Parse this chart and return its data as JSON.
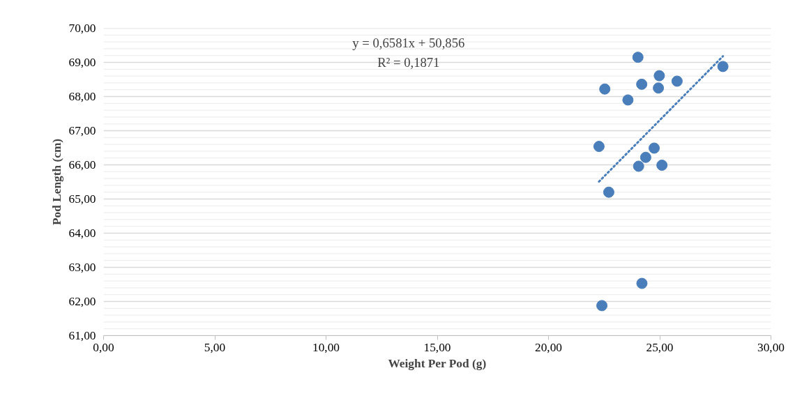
{
  "chart_data": {
    "type": "scatter",
    "xlabel": "Weight Per Pod (g)",
    "ylabel": "Pod Length (cm)",
    "xlim": [
      0,
      30
    ],
    "ylim": [
      61,
      70
    ],
    "xticks": [
      {
        "value": 0,
        "label": "0,00"
      },
      {
        "value": 5,
        "label": "5,00"
      },
      {
        "value": 10,
        "label": "10,00"
      },
      {
        "value": 15,
        "label": "15,00"
      },
      {
        "value": 20,
        "label": "20,00"
      },
      {
        "value": 25,
        "label": "25,00"
      },
      {
        "value": 30,
        "label": "30,00"
      }
    ],
    "yticks": [
      {
        "value": 61,
        "label": "61,00"
      },
      {
        "value": 61.2,
        "label": null
      },
      {
        "value": 61.4,
        "label": null
      },
      {
        "value": 61.6,
        "label": null
      },
      {
        "value": 61.8,
        "label": null
      },
      {
        "value": 62,
        "label": "62,00"
      },
      {
        "value": 62.2,
        "label": null
      },
      {
        "value": 62.4,
        "label": null
      },
      {
        "value": 62.6,
        "label": null
      },
      {
        "value": 62.8,
        "label": null
      },
      {
        "value": 63,
        "label": "63,00"
      },
      {
        "value": 63.2,
        "label": null
      },
      {
        "value": 63.4,
        "label": null
      },
      {
        "value": 63.6,
        "label": null
      },
      {
        "value": 63.8,
        "label": null
      },
      {
        "value": 64,
        "label": "64,00"
      },
      {
        "value": 64.2,
        "label": null
      },
      {
        "value": 64.4,
        "label": null
      },
      {
        "value": 64.6,
        "label": null
      },
      {
        "value": 64.8,
        "label": null
      },
      {
        "value": 65,
        "label": "65,00"
      },
      {
        "value": 65.2,
        "label": null
      },
      {
        "value": 65.4,
        "label": null
      },
      {
        "value": 65.6,
        "label": null
      },
      {
        "value": 65.8,
        "label": null
      },
      {
        "value": 66,
        "label": "66,00"
      },
      {
        "value": 66.2,
        "label": null
      },
      {
        "value": 66.4,
        "label": null
      },
      {
        "value": 66.6,
        "label": null
      },
      {
        "value": 66.8,
        "label": null
      },
      {
        "value": 67,
        "label": "67,00"
      },
      {
        "value": 67.2,
        "label": null
      },
      {
        "value": 67.4,
        "label": null
      },
      {
        "value": 67.6,
        "label": null
      },
      {
        "value": 67.8,
        "label": null
      },
      {
        "value": 68,
        "label": "68,00"
      },
      {
        "value": 68.2,
        "label": null
      },
      {
        "value": 68.4,
        "label": null
      },
      {
        "value": 68.6,
        "label": null
      },
      {
        "value": 68.8,
        "label": null
      },
      {
        "value": 69,
        "label": "69,00"
      },
      {
        "value": 69.2,
        "label": null
      },
      {
        "value": 69.4,
        "label": null
      },
      {
        "value": 69.6,
        "label": null
      },
      {
        "value": 69.8,
        "label": null
      },
      {
        "value": 70,
        "label": "70,00"
      }
    ],
    "grid": "y",
    "marker": "circle",
    "series": [
      {
        "color": "#4a7ebb",
        "x": [
          24.02,
          27.84,
          24.98,
          25.78,
          24.19,
          24.94,
          22.53,
          23.57,
          22.27,
          24.75,
          24.37,
          24.05,
          25.1,
          22.71,
          24.2,
          22.4
        ],
        "values": [
          69.15,
          68.88,
          68.61,
          68.45,
          68.36,
          68.25,
          68.22,
          67.9,
          66.54,
          66.49,
          66.22,
          65.96,
          65.99,
          65.2,
          62.53,
          61.88
        ]
      },
      {
        "type": "line",
        "line_style": "dotted",
        "marker": "none",
        "color": "#4a7ebb",
        "x": [
          22.27,
          27.84
        ],
        "values": [
          65.51,
          69.18
        ]
      }
    ],
    "annotations": [
      "y = 0,6581x + 50,856",
      "R² = 0,1871"
    ]
  }
}
